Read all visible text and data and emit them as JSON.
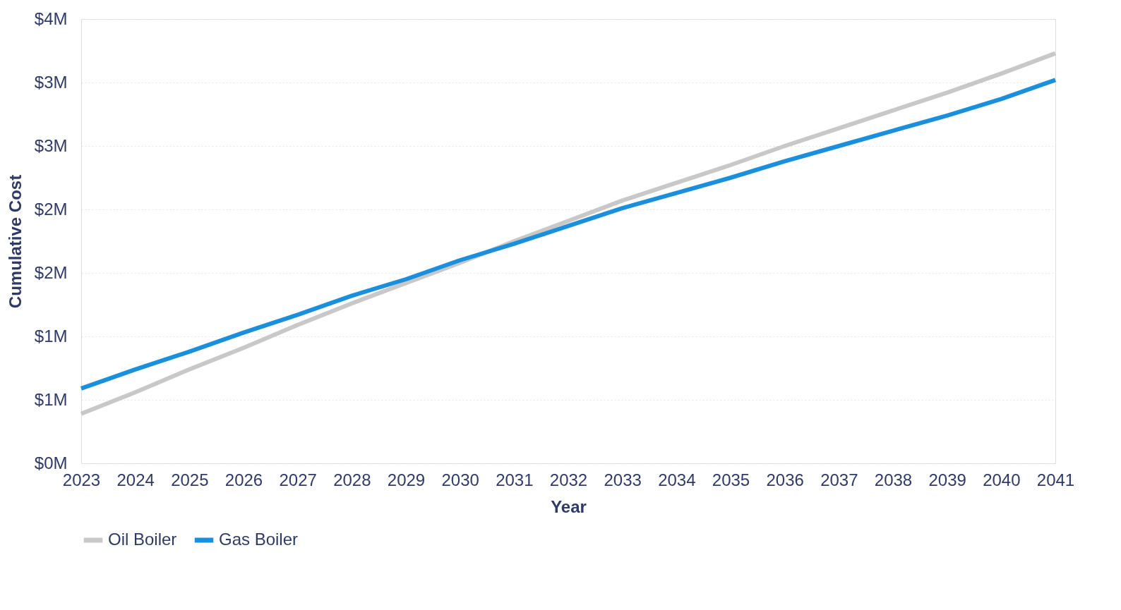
{
  "chart_data": {
    "type": "line",
    "xlabel": "Year",
    "ylabel": "Cumulative Cost",
    "categories": [
      "2023",
      "2024",
      "2025",
      "2026",
      "2027",
      "2028",
      "2029",
      "2030",
      "2031",
      "2032",
      "2033",
      "2034",
      "2035",
      "2036",
      "2037",
      "2038",
      "2039",
      "2040",
      "2041"
    ],
    "series": [
      {
        "name": "Oil Boiler",
        "color": "#c8c8c8",
        "values": [
          0.39,
          0.56,
          0.74,
          0.91,
          1.09,
          1.26,
          1.42,
          1.58,
          1.75,
          1.91,
          2.07,
          2.21,
          2.35,
          2.5,
          2.64,
          2.78,
          2.92,
          3.07,
          3.23
        ]
      },
      {
        "name": "Gas Boiler",
        "color": "#1a8fdd",
        "values": [
          0.59,
          0.74,
          0.88,
          1.03,
          1.17,
          1.32,
          1.45,
          1.6,
          1.73,
          1.87,
          2.01,
          2.13,
          2.25,
          2.38,
          2.5,
          2.62,
          2.74,
          2.87,
          3.02
        ]
      }
    ],
    "ylim": [
      0,
      3.5
    ],
    "yticks": [
      {
        "value": 0,
        "label": "$0M"
      },
      {
        "value": 0.5,
        "label": "$1M"
      },
      {
        "value": 1,
        "label": "$1M"
      },
      {
        "value": 1.5,
        "label": "$2M"
      },
      {
        "value": 2,
        "label": "$2M"
      },
      {
        "value": 2.5,
        "label": "$3M"
      },
      {
        "value": 3,
        "label": "$3M"
      },
      {
        "value": 3.5,
        "label": "$4M"
      }
    ],
    "grid": "y",
    "legend": "bottom",
    "marker": "none",
    "line_style": "solid"
  }
}
